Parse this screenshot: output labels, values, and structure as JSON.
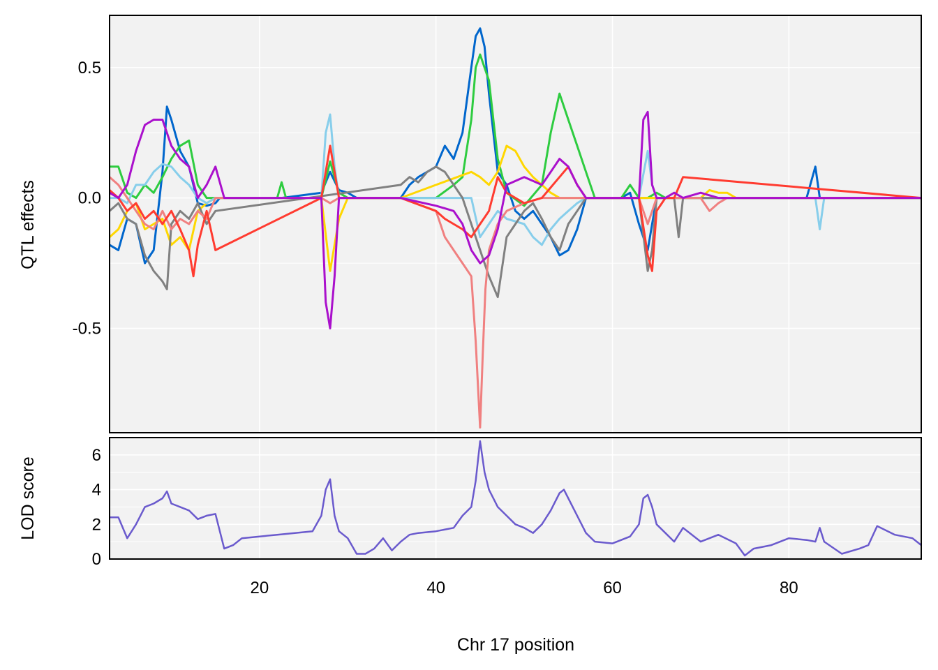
{
  "chart_data": {
    "type": "line",
    "xlabel": "Chr 17 position",
    "xlim": [
      3,
      95
    ],
    "xticks": [
      20,
      40,
      60,
      80
    ],
    "colors": {
      "panel_bg": "#f2f2f2",
      "grid": "#ffffff",
      "lod_line": "#6a5acd"
    },
    "effects_panel": {
      "ylabel": "QTL effects",
      "ylim": [
        -0.9,
        0.7
      ],
      "yticks": [
        -0.5,
        0.0,
        0.5
      ],
      "ytick_labels": [
        "-0.5",
        "0.0",
        "0.5"
      ],
      "series": [
        {
          "color": "#0066cc",
          "x": [
            3,
            4,
            5,
            6,
            7,
            8,
            9,
            9.5,
            10,
            11,
            12,
            13,
            14,
            15,
            15.5,
            22.5,
            27,
            28,
            29,
            30,
            31,
            36,
            37,
            38,
            39,
            40,
            41,
            42,
            43,
            44,
            44.5,
            45,
            45.5,
            46,
            47,
            48,
            49,
            50,
            51,
            52,
            53,
            54,
            55,
            56,
            57,
            58,
            59,
            60,
            61,
            62,
            63,
            64,
            64.5,
            65,
            66,
            67,
            68,
            69,
            70,
            71,
            72,
            73,
            74,
            75,
            80,
            82,
            83,
            83.5,
            90,
            95
          ],
          "y": [
            -0.18,
            -0.2,
            -0.08,
            -0.1,
            -0.25,
            -0.2,
            0.1,
            0.35,
            0.3,
            0.18,
            0.12,
            -0.02,
            -0.03,
            -0.02,
            0.0,
            0.0,
            0.02,
            0.1,
            0.03,
            0.02,
            0.0,
            0.0,
            0.05,
            0.08,
            0.1,
            0.12,
            0.2,
            0.15,
            0.25,
            0.5,
            0.62,
            0.65,
            0.58,
            0.4,
            0.1,
            0.05,
            -0.05,
            -0.08,
            -0.05,
            -0.1,
            -0.15,
            -0.22,
            -0.2,
            -0.12,
            0.0,
            0.0,
            0.0,
            0.0,
            0.0,
            0.02,
            -0.1,
            -0.2,
            -0.1,
            0.0,
            0.0,
            0.0,
            0.0,
            0.0,
            0.0,
            0.0,
            0.0,
            0.0,
            0.0,
            0.0,
            0.0,
            0.0,
            0.12,
            0.0,
            0.0,
            0.0
          ]
        },
        {
          "color": "#2ecc40",
          "x": [
            3,
            4,
            5,
            6,
            7,
            8,
            9,
            10,
            11,
            12,
            13,
            14,
            15,
            22,
            22.5,
            23,
            27,
            28,
            29,
            30,
            36,
            40,
            42,
            43,
            44,
            44.5,
            45,
            46,
            47,
            48,
            50,
            52,
            53,
            54,
            55,
            56,
            57,
            58,
            61,
            62,
            63,
            64,
            65,
            66,
            70,
            83,
            95
          ],
          "y": [
            0.12,
            0.12,
            0.02,
            0.0,
            0.05,
            0.02,
            0.08,
            0.15,
            0.2,
            0.22,
            0.05,
            0.0,
            0.0,
            0.0,
            0.06,
            0.0,
            0.0,
            0.14,
            0.02,
            0.0,
            0.0,
            0.0,
            0.05,
            0.08,
            0.3,
            0.5,
            0.55,
            0.45,
            0.15,
            0.02,
            -0.03,
            0.05,
            0.25,
            0.4,
            0.3,
            0.2,
            0.1,
            0.0,
            0.0,
            0.05,
            0.0,
            0.0,
            0.02,
            0.0,
            0.0,
            0.0,
            0.0
          ]
        },
        {
          "color": "#ffd700",
          "x": [
            3,
            4,
            5,
            6,
            7,
            8,
            9,
            10,
            11,
            12,
            13,
            14,
            15,
            27,
            28,
            29,
            30,
            36,
            40,
            44,
            45,
            46,
            47,
            48,
            49,
            50,
            51,
            52,
            53,
            54,
            55,
            57,
            58,
            70,
            71,
            72,
            73,
            74,
            95
          ],
          "y": [
            -0.15,
            -0.12,
            -0.05,
            -0.02,
            -0.12,
            -0.1,
            -0.08,
            -0.18,
            -0.15,
            -0.2,
            -0.05,
            -0.02,
            0.0,
            0.0,
            -0.28,
            -0.08,
            0.0,
            0.0,
            0.05,
            0.1,
            0.08,
            0.05,
            0.1,
            0.2,
            0.18,
            0.12,
            0.08,
            0.05,
            0.02,
            0.0,
            0.0,
            0.0,
            0.0,
            0.0,
            0.03,
            0.02,
            0.02,
            0.0,
            0.0
          ]
        },
        {
          "color": "#87ceeb",
          "x": [
            3,
            4,
            5,
            6,
            7,
            8,
            9,
            10,
            11,
            12,
            13,
            14,
            15,
            27,
            27.5,
            28,
            28.5,
            29,
            30,
            36,
            40,
            44,
            45,
            46,
            47,
            48,
            50,
            51,
            52,
            53,
            54,
            55,
            56,
            57,
            58,
            63,
            64,
            64.5,
            65,
            83,
            83.5,
            84,
            95
          ],
          "y": [
            0.0,
            0.0,
            -0.02,
            0.05,
            0.05,
            0.1,
            0.13,
            0.12,
            0.08,
            0.05,
            0.0,
            -0.02,
            0.0,
            0.0,
            0.25,
            0.32,
            0.12,
            0.0,
            0.0,
            0.0,
            0.0,
            0.0,
            -0.15,
            -0.1,
            -0.05,
            -0.08,
            -0.1,
            -0.15,
            -0.18,
            -0.12,
            -0.08,
            -0.05,
            -0.02,
            0.0,
            0.0,
            0.0,
            0.18,
            0.05,
            0.0,
            0.0,
            -0.12,
            0.0,
            0.0
          ]
        },
        {
          "color": "#808080",
          "x": [
            3,
            4,
            5,
            6,
            7,
            8,
            9,
            9.5,
            10,
            11,
            12,
            13,
            14,
            15,
            36,
            37,
            38,
            39,
            40,
            41,
            42,
            43,
            44,
            45,
            46,
            47,
            48,
            49,
            50,
            51,
            52,
            53,
            54,
            55,
            56,
            57,
            58,
            63,
            64,
            64.5,
            65,
            66,
            67,
            67.5,
            68,
            95
          ],
          "y": [
            -0.05,
            -0.02,
            -0.08,
            -0.1,
            -0.22,
            -0.28,
            -0.32,
            -0.35,
            -0.1,
            -0.05,
            -0.08,
            -0.02,
            -0.1,
            -0.05,
            0.05,
            0.08,
            0.06,
            0.1,
            0.12,
            0.1,
            0.05,
            0.0,
            -0.1,
            -0.2,
            -0.3,
            -0.38,
            -0.15,
            -0.1,
            -0.05,
            -0.02,
            -0.08,
            -0.15,
            -0.2,
            -0.1,
            -0.05,
            0.0,
            0.0,
            0.0,
            -0.28,
            -0.2,
            0.0,
            0.0,
            0.0,
            -0.15,
            0.0,
            0.0
          ]
        },
        {
          "color": "#f08080",
          "x": [
            3,
            4,
            5,
            6,
            7,
            8,
            9,
            10,
            11,
            12,
            13,
            14,
            15,
            27,
            28,
            29,
            30,
            36,
            40,
            41,
            42,
            43,
            44,
            44.5,
            45,
            45.3,
            45.6,
            46,
            47,
            48,
            50,
            52,
            54,
            55,
            57,
            58,
            63,
            64,
            65,
            68,
            70,
            71,
            72,
            73,
            95
          ],
          "y": [
            0.08,
            0.05,
            0.0,
            -0.05,
            -0.1,
            -0.12,
            -0.05,
            -0.12,
            -0.08,
            -0.1,
            -0.05,
            -0.08,
            0.0,
            0.0,
            -0.02,
            0.0,
            0.0,
            0.0,
            -0.05,
            -0.15,
            -0.2,
            -0.25,
            -0.3,
            -0.55,
            -0.88,
            -0.6,
            -0.35,
            -0.2,
            -0.1,
            -0.05,
            -0.02,
            0.0,
            0.0,
            0.0,
            0.0,
            0.0,
            0.0,
            -0.1,
            0.0,
            0.0,
            0.0,
            -0.05,
            -0.02,
            0.0,
            0.0
          ]
        },
        {
          "color": "#ff3b30",
          "x": [
            3,
            4,
            5,
            6,
            7,
            8,
            9,
            10,
            11,
            12,
            12.5,
            13,
            14,
            15,
            27,
            28,
            29,
            30,
            36,
            40,
            41,
            42,
            43,
            44,
            45,
            46,
            47,
            48,
            50,
            52,
            54,
            55,
            56,
            57,
            58,
            63,
            64,
            64.5,
            65,
            66,
            67,
            68,
            95
          ],
          "y": [
            0.03,
            0.0,
            -0.05,
            -0.02,
            -0.08,
            -0.05,
            -0.1,
            -0.05,
            -0.12,
            -0.2,
            -0.3,
            -0.18,
            -0.05,
            -0.2,
            0.0,
            0.2,
            0.0,
            0.0,
            0.0,
            -0.05,
            -0.08,
            -0.1,
            -0.12,
            -0.15,
            -0.1,
            -0.05,
            0.08,
            0.02,
            -0.02,
            0.0,
            0.08,
            0.12,
            0.05,
            0.0,
            0.0,
            0.0,
            -0.22,
            -0.28,
            -0.05,
            0.0,
            0.0,
            0.08,
            0.0
          ]
        },
        {
          "color": "#aa10cc",
          "x": [
            3,
            4,
            5,
            6,
            7,
            8,
            9,
            10,
            11,
            12,
            13,
            14,
            15,
            16,
            27,
            27.5,
            28,
            28.5,
            29,
            30,
            36,
            40,
            42,
            43,
            44,
            45,
            46,
            47,
            48,
            50,
            52,
            53,
            54,
            55,
            56,
            57,
            58,
            63,
            63.5,
            64,
            64.5,
            65,
            66,
            67,
            68,
            70,
            72,
            73,
            95
          ],
          "y": [
            0.02,
            0.0,
            0.05,
            0.18,
            0.28,
            0.3,
            0.3,
            0.2,
            0.15,
            0.12,
            0.0,
            0.05,
            0.12,
            0.0,
            0.0,
            -0.4,
            -0.5,
            -0.3,
            0.0,
            0.0,
            0.0,
            -0.03,
            -0.05,
            -0.1,
            -0.2,
            -0.25,
            -0.22,
            -0.12,
            0.05,
            0.08,
            0.05,
            0.1,
            0.15,
            0.12,
            0.05,
            0.0,
            0.0,
            0.0,
            0.3,
            0.33,
            0.05,
            0.0,
            0.0,
            0.02,
            0.0,
            0.02,
            0.0,
            0.0,
            0.0
          ]
        }
      ]
    },
    "lod_panel": {
      "ylabel": "LOD score",
      "ylim": [
        0,
        7
      ],
      "yticks": [
        0,
        2,
        4,
        6
      ],
      "ytick_labels": [
        "0",
        "2",
        "4",
        "6"
      ],
      "series": [
        {
          "color": "#6a5acd",
          "x": [
            3,
            4,
            5,
            6,
            7,
            8,
            9,
            9.5,
            10,
            11,
            12,
            13,
            14,
            15,
            16,
            17,
            18,
            20,
            22,
            24,
            26,
            27,
            27.5,
            28,
            28.5,
            29,
            30,
            31,
            32,
            33,
            34,
            35,
            36,
            37,
            38,
            40,
            42,
            43,
            44,
            44.5,
            45,
            45.5,
            46,
            47,
            48,
            49,
            50,
            51,
            52,
            53,
            54,
            54.5,
            55,
            56,
            57,
            58,
            60,
            62,
            63,
            63.5,
            64,
            64.5,
            65,
            66,
            67,
            68,
            70,
            72,
            74,
            75,
            76,
            78,
            80,
            82,
            83,
            83.5,
            84,
            86,
            88,
            89,
            90,
            92,
            94,
            95
          ],
          "y": [
            2.4,
            2.4,
            1.2,
            2.0,
            3.0,
            3.2,
            3.5,
            3.9,
            3.2,
            3.0,
            2.8,
            2.3,
            2.5,
            2.6,
            0.6,
            0.8,
            1.2,
            1.3,
            1.4,
            1.5,
            1.6,
            2.5,
            4.0,
            4.6,
            2.5,
            1.6,
            1.2,
            0.3,
            0.3,
            0.6,
            1.2,
            0.5,
            1.0,
            1.4,
            1.5,
            1.6,
            1.8,
            2.5,
            3.0,
            4.5,
            6.8,
            5.0,
            4.0,
            3.0,
            2.5,
            2.0,
            1.8,
            1.5,
            2.0,
            2.8,
            3.8,
            4.0,
            3.5,
            2.5,
            1.5,
            1.0,
            0.9,
            1.3,
            2.0,
            3.5,
            3.7,
            3.0,
            2.0,
            1.5,
            1.0,
            1.8,
            1.0,
            1.4,
            0.9,
            0.2,
            0.6,
            0.8,
            1.2,
            1.1,
            1.0,
            1.8,
            1.0,
            0.3,
            0.6,
            0.8,
            1.9,
            1.4,
            1.2,
            0.8
          ]
        }
      ]
    }
  }
}
